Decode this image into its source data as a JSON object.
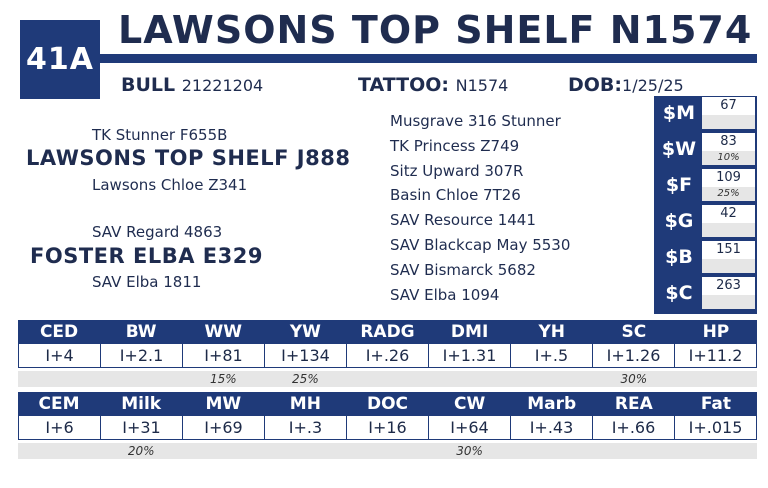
{
  "lot": "41A",
  "name": "LAWSONS TOP SHELF N1574",
  "header": {
    "type_label": "BULL",
    "reg": "21221204",
    "tattoo_label": "TATTOO:",
    "tattoo": "N1574",
    "dob_label": "DOB:",
    "dob": "1/25/25"
  },
  "pedigree": {
    "sire_sire": "TK Stunner F655B",
    "sire": "LAWSONS TOP SHELF J888",
    "sire_dam": "Lawsons Chloe Z341",
    "dam_sire": "SAV Regard 4863",
    "dam": "FOSTER ELBA E329",
    "dam_dam": "SAV Elba 1811",
    "great": [
      "Musgrave 316 Stunner",
      "TK Princess Z749",
      "Sitz Upward 307R",
      "Basin Chloe 7T26",
      "SAV Resource 1441",
      "SAV Blackcap May 5530",
      "SAV Bismarck 5682",
      "SAV Elba 1094"
    ]
  },
  "indexes": [
    {
      "label": "$M",
      "value": "67",
      "pct": ""
    },
    {
      "label": "$W",
      "value": "83",
      "pct": "10%"
    },
    {
      "label": "$F",
      "value": "109",
      "pct": "25%"
    },
    {
      "label": "$G",
      "value": "42",
      "pct": ""
    },
    {
      "label": "$B",
      "value": "151",
      "pct": ""
    },
    {
      "label": "$C",
      "value": "263",
      "pct": ""
    }
  ],
  "epd1": {
    "headers": [
      "CED",
      "BW",
      "WW",
      "YW",
      "RADG",
      "DMI",
      "YH",
      "SC",
      "HP"
    ],
    "values": [
      "I+4",
      "I+2.1",
      "I+81",
      "I+134",
      "I+.26",
      "I+1.31",
      "I+.5",
      "I+1.26",
      "I+11.2"
    ],
    "pcts": [
      "",
      "",
      "15%",
      "25%",
      "",
      "",
      "",
      "30%",
      ""
    ]
  },
  "epd2": {
    "headers": [
      "CEM",
      "Milk",
      "MW",
      "MH",
      "DOC",
      "CW",
      "Marb",
      "REA",
      "Fat"
    ],
    "values": [
      "I+6",
      "I+31",
      "I+69",
      "I+.3",
      "I+16",
      "I+64",
      "I+.43",
      "I+.66",
      "I+.015"
    ],
    "pcts": [
      "",
      "20%",
      "",
      "",
      "",
      "30%",
      "",
      "",
      ""
    ]
  }
}
